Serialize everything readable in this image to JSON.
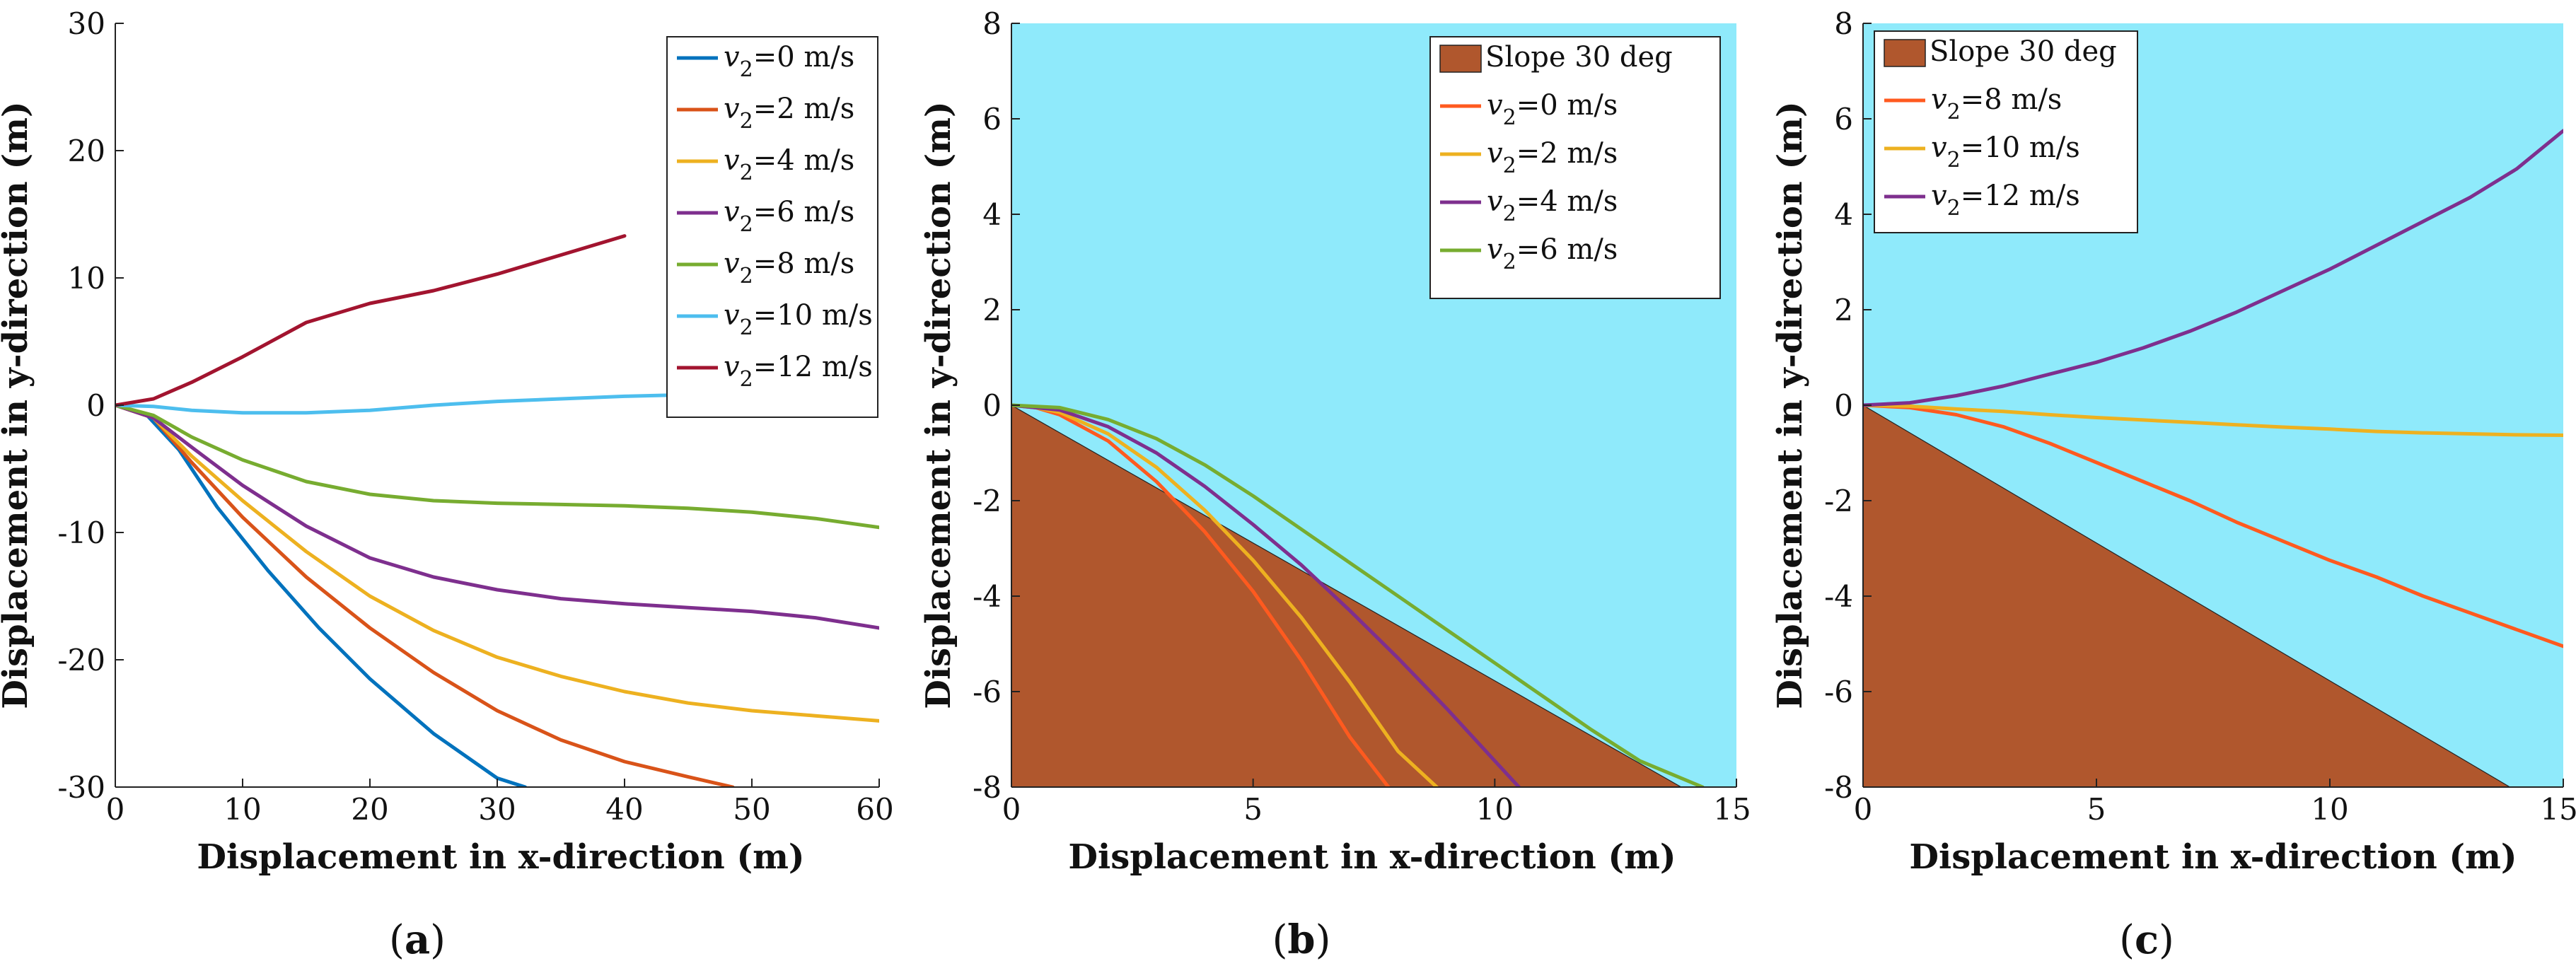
{
  "chart_data": [
    {
      "id": "a",
      "type": "line",
      "caption": "a",
      "xlabel": "Displacement in x-direction (m)",
      "ylabel": "Displacement in y-direction (m)",
      "xlim": [
        0,
        60
      ],
      "ylim": [
        -30,
        30
      ],
      "xticks": [
        "0",
        "10",
        "20",
        "30",
        "40",
        "50",
        "60"
      ],
      "yticks": [
        "-30",
        "-20",
        "-10",
        "0",
        "10",
        "20",
        "30"
      ],
      "legend_position": "top-right",
      "series": [
        {
          "name": "v2=0 m/s",
          "legend_label": "=0 m/s",
          "color": "#0072BD",
          "x": [
            0,
            2.5,
            5,
            8,
            12,
            16,
            20,
            25,
            30,
            32.2
          ],
          "y": [
            0,
            -0.8,
            -3.5,
            -8,
            -13,
            -17.5,
            -21.5,
            -25.8,
            -29.3,
            -30
          ]
        },
        {
          "name": "v2=2 m/s",
          "legend_label": "=2 m/s",
          "color": "#D95319",
          "x": [
            0,
            3,
            6,
            10,
            15,
            20,
            25,
            30,
            35,
            40,
            45,
            48.5
          ],
          "y": [
            0,
            -1,
            -4.5,
            -8.8,
            -13.5,
            -17.5,
            -21,
            -24,
            -26.3,
            -28,
            -29.2,
            -30
          ]
        },
        {
          "name": "v2=4 m/s",
          "legend_label": "=4 m/s",
          "color": "#EDB120",
          "x": [
            0,
            3,
            6,
            10,
            15,
            20,
            25,
            30,
            35,
            40,
            45,
            50,
            55,
            60
          ],
          "y": [
            0,
            -1,
            -4,
            -7.5,
            -11.5,
            -15,
            -17.7,
            -19.8,
            -21.3,
            -22.5,
            -23.4,
            -24,
            -24.4,
            -24.8
          ]
        },
        {
          "name": "v2=6 m/s",
          "legend_label": "=6 m/s",
          "color": "#7E2F8E",
          "x": [
            0,
            3,
            6,
            10,
            15,
            20,
            25,
            30,
            35,
            40,
            45,
            50,
            55,
            60
          ],
          "y": [
            0,
            -1,
            -3.3,
            -6.3,
            -9.5,
            -12,
            -13.5,
            -14.5,
            -15.2,
            -15.6,
            -15.9,
            -16.2,
            -16.7,
            -17.5
          ]
        },
        {
          "name": "v2=8 m/s",
          "legend_label": "=8 m/s",
          "color": "#77AC30",
          "x": [
            0,
            3,
            6,
            10,
            15,
            20,
            25,
            30,
            35,
            40,
            45,
            50,
            55,
            60
          ],
          "y": [
            0,
            -0.8,
            -2.5,
            -4.3,
            -6,
            -7,
            -7.5,
            -7.7,
            -7.8,
            -7.9,
            -8.1,
            -8.4,
            -8.9,
            -9.6
          ]
        },
        {
          "name": "v2=10 m/s",
          "legend_label": "=10 m/s",
          "color": "#4DBEEE",
          "x": [
            0,
            3,
            6,
            10,
            15,
            20,
            25,
            30,
            35,
            40,
            44
          ],
          "y": [
            0,
            -0.1,
            -0.4,
            -0.6,
            -0.6,
            -0.4,
            0,
            0.3,
            0.5,
            0.7,
            0.8
          ]
        },
        {
          "name": "v2=12 m/s",
          "legend_label": "=12 m/s",
          "color": "#A2142F",
          "x": [
            0,
            3,
            6,
            10,
            15,
            20,
            25,
            30,
            35,
            40
          ],
          "y": [
            0,
            0.5,
            1.8,
            3.8,
            6.5,
            8,
            9,
            10.3,
            11.8,
            13.3
          ]
        }
      ]
    },
    {
      "id": "b",
      "type": "line",
      "caption": "b",
      "xlabel": "Displacement in x-direction (m)",
      "ylabel": "Displacement in y-direction (m)",
      "xlim": [
        0,
        15
      ],
      "ylim": [
        -8,
        8
      ],
      "xticks": [
        "0",
        "5",
        "10",
        "15"
      ],
      "yticks": [
        "-8",
        "-6",
        "-4",
        "-2",
        "0",
        "2",
        "4",
        "6",
        "8"
      ],
      "background_color": "#8FEAFB",
      "slope": {
        "label": "Slope 30 deg",
        "angle_deg": 30,
        "color": "#B0572D"
      },
      "legend_position": "top-right",
      "series": [
        {
          "name": "v2=0 m/s",
          "legend_label": "=0 m/s",
          "color": "#FF5A1F",
          "x": [
            0,
            0.5,
            1,
            2,
            3,
            4,
            5,
            6,
            7,
            7.8
          ],
          "y": [
            0,
            -0.05,
            -0.2,
            -0.75,
            -1.6,
            -2.65,
            -3.9,
            -5.35,
            -6.95,
            -8
          ]
        },
        {
          "name": "v2=2 m/s",
          "legend_label": "=2 m/s",
          "color": "#EDB120",
          "x": [
            0,
            0.5,
            1,
            2,
            3,
            4,
            5,
            6,
            7,
            8,
            8.8
          ],
          "y": [
            0,
            -0.05,
            -0.15,
            -0.6,
            -1.3,
            -2.2,
            -3.25,
            -4.45,
            -5.8,
            -7.25,
            -8
          ]
        },
        {
          "name": "v2=4 m/s",
          "legend_label": "=4 m/s",
          "color": "#7E2F8E",
          "x": [
            0,
            1,
            2,
            3,
            4,
            5,
            6,
            7,
            8,
            9,
            10,
            10.5
          ],
          "y": [
            0,
            -0.1,
            -0.45,
            -1,
            -1.7,
            -2.5,
            -3.35,
            -4.3,
            -5.3,
            -6.35,
            -7.45,
            -8
          ]
        },
        {
          "name": "v2=6 m/s",
          "legend_label": "=6 m/s",
          "color": "#77AC30",
          "x": [
            0,
            1,
            2,
            3,
            4,
            5,
            6,
            7,
            8,
            9,
            10,
            11,
            12,
            13,
            14.3
          ],
          "y": [
            0,
            -0.05,
            -0.3,
            -0.7,
            -1.25,
            -1.9,
            -2.6,
            -3.3,
            -4,
            -4.7,
            -5.4,
            -6.1,
            -6.8,
            -7.45,
            -8
          ]
        }
      ]
    },
    {
      "id": "c",
      "type": "line",
      "caption": "c",
      "xlabel": "Displacement in x-direction (m)",
      "ylabel": "Displacement in y-direction (m)",
      "xlim": [
        0,
        15
      ],
      "ylim": [
        -8,
        8
      ],
      "xticks": [
        "0",
        "5",
        "10",
        "15"
      ],
      "yticks": [
        "-8",
        "-6",
        "-4",
        "-2",
        "0",
        "2",
        "4",
        "6",
        "8"
      ],
      "background_color": "#8FEAFB",
      "slope": {
        "label": "Slope 30 deg",
        "angle_deg": 30,
        "color": "#B0572D"
      },
      "legend_position": "top-left",
      "series": [
        {
          "name": "v2=8 m/s",
          "legend_label": "=8 m/s",
          "color": "#FF5A1F",
          "x": [
            0,
            1,
            2,
            3,
            4,
            5,
            6,
            7,
            8,
            9,
            10,
            11,
            12,
            13,
            14,
            15
          ],
          "y": [
            0,
            -0.05,
            -0.2,
            -0.45,
            -0.8,
            -1.2,
            -1.6,
            -2,
            -2.45,
            -2.85,
            -3.25,
            -3.6,
            -4,
            -4.35,
            -4.7,
            -5.05
          ]
        },
        {
          "name": "v2=10 m/s",
          "legend_label": "=10 m/s",
          "color": "#EDB120",
          "x": [
            0,
            1,
            2,
            3,
            4,
            5,
            6,
            7,
            8,
            9,
            10,
            11,
            12,
            13,
            14,
            15
          ],
          "y": [
            0,
            -0.02,
            -0.08,
            -0.13,
            -0.2,
            -0.26,
            -0.31,
            -0.36,
            -0.41,
            -0.46,
            -0.5,
            -0.55,
            -0.58,
            -0.6,
            -0.62,
            -0.63
          ]
        },
        {
          "name": "v2=12 m/s",
          "legend_label": "=12 m/s",
          "color": "#7E2F8E",
          "x": [
            0,
            1,
            2,
            3,
            4,
            5,
            6,
            7,
            8,
            9,
            10,
            11,
            12,
            13,
            14,
            15
          ],
          "y": [
            0,
            0.05,
            0.2,
            0.4,
            0.65,
            0.9,
            1.2,
            1.55,
            1.95,
            2.4,
            2.85,
            3.35,
            3.85,
            4.35,
            4.95,
            5.75
          ]
        }
      ]
    }
  ]
}
